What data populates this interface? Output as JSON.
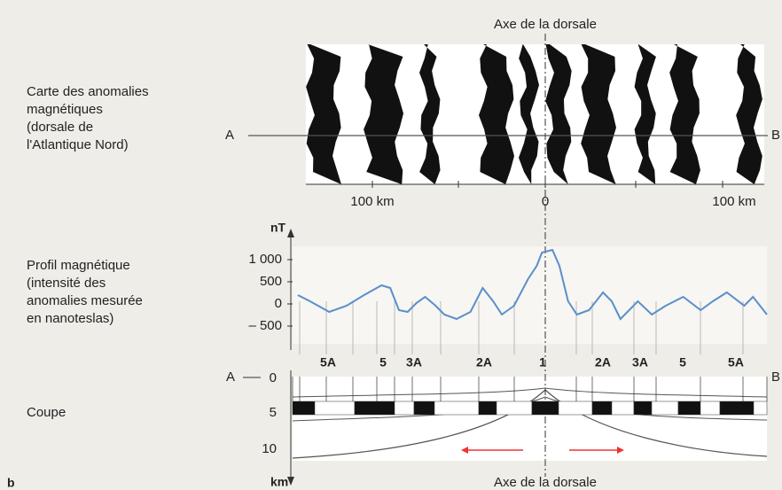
{
  "top_axis_label": "Axe de la dorsale",
  "bottom_axis_label": "Axe de la dorsale",
  "corner_letter": "b",
  "map": {
    "label": [
      "Carte des anomalies",
      "magnétiques",
      "(dorsale de",
      "l'Atlantique Nord)"
    ],
    "start": "A",
    "end": "B",
    "scale": [
      "100 km",
      "0",
      "100 km"
    ]
  },
  "profile": {
    "label": [
      "Profil magnétique",
      "(intensité des",
      "anomalies mesurée",
      "en nanoteslas)"
    ],
    "unit": "nT",
    "xlim": [
      -145,
      127
    ],
    "ylim": [
      -900,
      1300
    ],
    "yticks": [
      {
        "value": 1000,
        "label": "1 000"
      },
      500,
      0,
      {
        "value": -500,
        "label": "– 500"
      }
    ],
    "x_km": [
      -142,
      -135,
      -124,
      -114,
      -104,
      -94,
      -89,
      -84,
      -79,
      -74,
      -69,
      -63,
      -58,
      -51,
      -43,
      -36,
      -30,
      -25,
      -18,
      -10,
      -5,
      -2,
      4,
      8,
      13,
      18,
      25,
      33,
      38,
      43,
      53,
      61,
      69,
      79,
      89,
      96,
      104,
      114,
      119,
      127
    ],
    "values": [
      200,
      60,
      -180,
      -40,
      200,
      420,
      360,
      -140,
      -180,
      20,
      160,
      -40,
      -240,
      -340,
      -180,
      360,
      60,
      -240,
      -40,
      560,
      860,
      1160,
      1220,
      860,
      60,
      -240,
      -140,
      260,
      60,
      -340,
      60,
      -240,
      -40,
      160,
      -140,
      60,
      260,
      -40,
      160,
      -240
    ],
    "color": "#5b8fc9"
  },
  "section": {
    "label": "Coupe",
    "start": "A",
    "end": "B",
    "depth_ticks": [
      "0",
      "5",
      "10"
    ],
    "unit": "km",
    "anomalies": [
      "5A",
      "5",
      "3A",
      "2A",
      "1",
      "2A",
      "3A",
      "5",
      "5A"
    ]
  }
}
